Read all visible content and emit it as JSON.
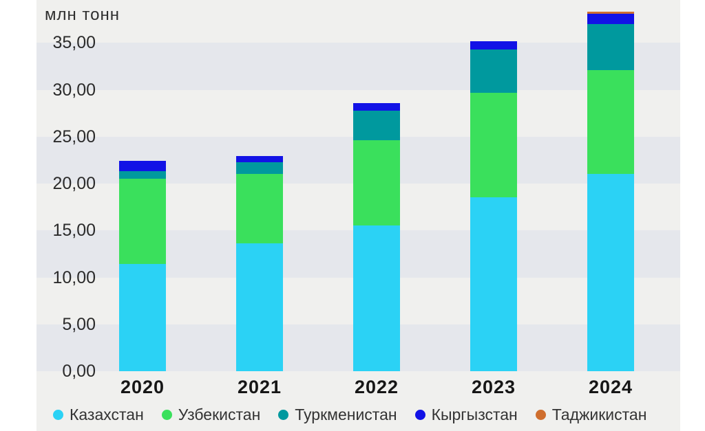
{
  "chart_data": {
    "type": "bar",
    "stacked": true,
    "unit_label": "млн тонн",
    "categories": [
      "2020",
      "2021",
      "2022",
      "2023",
      "2024"
    ],
    "series": [
      {
        "name": "Казахстан",
        "color": "#2bd2f5",
        "values": [
          11.4,
          13.6,
          15.5,
          18.5,
          21.0
        ]
      },
      {
        "name": "Узбекистан",
        "color": "#3ae05c",
        "values": [
          9.1,
          7.4,
          9.1,
          11.2,
          11.1
        ]
      },
      {
        "name": "Туркменистан",
        "color": "#00999e",
        "values": [
          0.8,
          1.3,
          3.2,
          4.6,
          4.9
        ]
      },
      {
        "name": "Кыргызстан",
        "color": "#1212e6",
        "values": [
          1.1,
          0.6,
          0.8,
          0.9,
          1.1
        ]
      },
      {
        "name": "Таджикистан",
        "color": "#cf6e2e",
        "values": [
          0,
          0,
          0,
          0,
          0.25
        ]
      }
    ],
    "totals": [
      22.4,
      22.9,
      28.6,
      35.2,
      38.35
    ],
    "y_ticks": [
      "0,00",
      "5,00",
      "10,00",
      "15,00",
      "20,00",
      "25,00",
      "30,00",
      "35,00"
    ],
    "ylim": [
      0,
      35
    ],
    "grid": "horizontal-bands-every-5",
    "legend_position": "bottom",
    "colors": {
      "band_light": "#f0f0ee",
      "band_dark": "#e5e7ec",
      "text": "#2b2b2b"
    }
  }
}
